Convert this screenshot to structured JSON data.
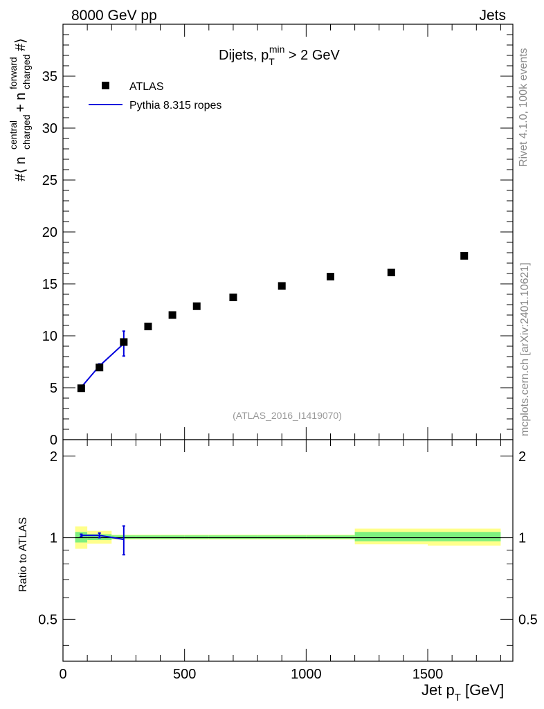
{
  "header": {
    "left": "8000 GeV pp",
    "right": "Jets"
  },
  "side_labels": {
    "upper": "Rivet 4.1.0,  100k events",
    "lower": "mcplots.cern.ch [arXiv:2401.10621]"
  },
  "analysis_tag": "(ATLAS_2016_I1419070)",
  "legend": {
    "data_label": "ATLAS",
    "mc_label": "Pythia 8.315 ropes"
  },
  "colors": {
    "mc": "#0000dd",
    "band_green": "#7ff07f",
    "band_yellow": "#ffff8c",
    "data": "#000000"
  },
  "chart_data": [
    {
      "type": "scatter",
      "title_main": "Dijets, p",
      "title_sub": "T",
      "title_sup": "min",
      "title_tail": " > 2 GeV",
      "ylabel": "#⟨ n_charged^central + n_charged^forward #⟩",
      "xlim": [
        0,
        1850
      ],
      "ylim": [
        0,
        40
      ],
      "yticks": [
        0,
        5,
        10,
        15,
        20,
        25,
        30,
        35
      ],
      "series": [
        {
          "name": "ATLAS",
          "x": [
            75,
            150,
            250,
            350,
            450,
            550,
            700,
            900,
            1100,
            1350,
            1650
          ],
          "y": [
            4.95,
            6.95,
            9.4,
            10.9,
            12.0,
            12.85,
            13.7,
            14.8,
            15.7,
            16.1,
            17.7
          ]
        },
        {
          "name": "Pythia 8.315 ropes",
          "x": [
            75,
            150,
            250
          ],
          "y": [
            5.05,
            7.1,
            9.25
          ],
          "yerr": [
            0.1,
            0.2,
            1.2
          ]
        }
      ]
    },
    {
      "type": "line",
      "ylabel": "Ratio to ATLAS",
      "xlabel": "Jet p",
      "xlabel_sub": "T",
      "xlabel_tail": " [GeV]",
      "xlim": [
        0,
        1850
      ],
      "ylim": [
        0.35,
        2.3
      ],
      "yscale": "log",
      "yticks": [
        0.5,
        1,
        2
      ],
      "xticks": [
        0,
        500,
        1000,
        1500
      ],
      "reference": 1,
      "bands": [
        {
          "x0": 50,
          "x1": 100,
          "green": [
            0.96,
            1.05
          ],
          "yellow": [
            0.91,
            1.1
          ]
        },
        {
          "x0": 100,
          "x1": 200,
          "green": [
            0.98,
            1.03
          ],
          "yellow": [
            0.95,
            1.06
          ]
        },
        {
          "x0": 200,
          "x1": 300,
          "green": [
            0.99,
            1.02
          ],
          "yellow": [
            0.985,
            1.025
          ]
        },
        {
          "x0": 300,
          "x1": 400,
          "green": [
            0.99,
            1.02
          ],
          "yellow": [
            0.985,
            1.025
          ]
        },
        {
          "x0": 400,
          "x1": 500,
          "green": [
            0.99,
            1.02
          ],
          "yellow": [
            0.985,
            1.025
          ]
        },
        {
          "x0": 500,
          "x1": 600,
          "green": [
            0.99,
            1.02
          ],
          "yellow": [
            0.985,
            1.025
          ]
        },
        {
          "x0": 600,
          "x1": 800,
          "green": [
            0.99,
            1.02
          ],
          "yellow": [
            0.985,
            1.025
          ]
        },
        {
          "x0": 800,
          "x1": 1000,
          "green": [
            0.99,
            1.02
          ],
          "yellow": [
            0.985,
            1.025
          ]
        },
        {
          "x0": 1000,
          "x1": 1200,
          "green": [
            0.99,
            1.02
          ],
          "yellow": [
            0.985,
            1.025
          ]
        },
        {
          "x0": 1200,
          "x1": 1500,
          "green": [
            0.97,
            1.05
          ],
          "yellow": [
            0.945,
            1.08
          ]
        },
        {
          "x0": 1500,
          "x1": 1800,
          "green": [
            0.97,
            1.05
          ],
          "yellow": [
            0.935,
            1.08
          ]
        }
      ],
      "series": [
        {
          "name": "Pythia 8.315 ropes / ATLAS",
          "x": [
            75,
            150,
            250
          ],
          "y": [
            1.02,
            1.02,
            0.985
          ],
          "yerr": [
            0.01,
            0.02,
            0.12
          ]
        }
      ]
    }
  ]
}
